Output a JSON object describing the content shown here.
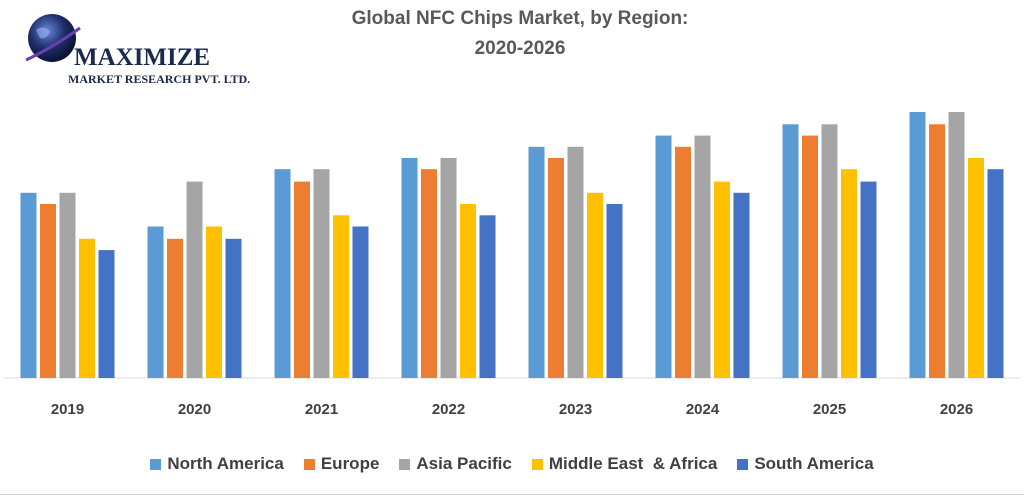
{
  "logo": {
    "name": "MAXIMIZE",
    "subtitle": "MARKET RESEARCH PVT. LTD.",
    "globe_color": "#1e2f6b",
    "accent_color": "#6a3fb0"
  },
  "chart_data": {
    "type": "bar",
    "title_line1": "Global NFC Chips Market, by Region:",
    "title_line2": "2020-2026",
    "categories": [
      "2019",
      "2020",
      "2021",
      "2022",
      "2023",
      "2024",
      "2025",
      "2026"
    ],
    "series": [
      {
        "name": "North America",
        "color": "#5b9bd5",
        "values": [
          165,
          135,
          186,
          196,
          206,
          216,
          226,
          237
        ]
      },
      {
        "name": "Europe",
        "color": "#ed7d31",
        "values": [
          155,
          124,
          175,
          186,
          196,
          206,
          216,
          226
        ]
      },
      {
        "name": "Asia Pacific",
        "color": "#a5a5a5",
        "values": [
          165,
          175,
          186,
          196,
          206,
          216,
          226,
          237
        ]
      },
      {
        "name": "Middle East  & Africa",
        "color": "#ffc000",
        "values": [
          124,
          135,
          145,
          155,
          165,
          175,
          186,
          196
        ]
      },
      {
        "name": "South America",
        "color": "#4472c4",
        "values": [
          114,
          124,
          135,
          145,
          155,
          165,
          175,
          186
        ]
      }
    ],
    "ylim": [
      0,
      250
    ],
    "grid": false,
    "legend_position": "bottom"
  }
}
